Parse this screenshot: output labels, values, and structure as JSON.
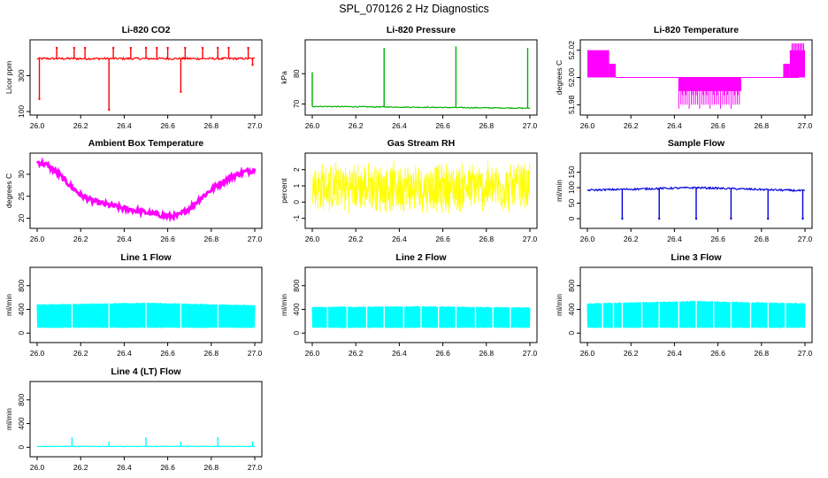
{
  "page_title": "SPL_070126  2 Hz Diagnostics",
  "colors": {
    "red": "#ff0000",
    "green": "#00b000",
    "magenta": "#ff00ff",
    "yellow": "#ffff00",
    "blue": "#0000dd",
    "cyan": "#00ffff",
    "axis": "#000000"
  },
  "chart_data": [
    {
      "id": "co2",
      "type": "line",
      "title": "Li-820 CO2",
      "ylabel": "Licor ppm",
      "color": "red",
      "xlim": [
        26.0,
        27.0
      ],
      "ylim": [
        100,
        480
      ],
      "x_ticks": [
        "26.0",
        "26.2",
        "26.4",
        "26.6",
        "26.8",
        "27.0"
      ],
      "y_ticks": [
        {
          "v": 100,
          "label": "100"
        },
        {
          "v": 300,
          "label": "300"
        }
      ],
      "baseline": 395,
      "noise": 6,
      "spikes": [
        [
          26.01,
          170
        ],
        [
          26.09,
          455
        ],
        [
          26.17,
          455
        ],
        [
          26.22,
          455
        ],
        [
          26.33,
          110
        ],
        [
          26.35,
          455
        ],
        [
          26.43,
          455
        ],
        [
          26.5,
          455
        ],
        [
          26.55,
          455
        ],
        [
          26.6,
          455
        ],
        [
          26.66,
          210
        ],
        [
          26.68,
          455
        ],
        [
          26.76,
          455
        ],
        [
          26.83,
          455
        ],
        [
          26.88,
          455
        ],
        [
          26.97,
          455
        ],
        [
          26.99,
          360
        ]
      ]
    },
    {
      "id": "pressure",
      "type": "line",
      "title": "Li-820 Pressure",
      "ylabel": "kPa",
      "color": "green",
      "xlim": [
        26.0,
        27.0
      ],
      "ylim": [
        67.5,
        90
      ],
      "x_ticks": [
        "26.0",
        "26.2",
        "26.4",
        "26.6",
        "26.8",
        "27.0"
      ],
      "y_ticks": [
        {
          "v": 70,
          "label": "70"
        },
        {
          "v": 80,
          "label": "80"
        }
      ],
      "baseline_start": 69.2,
      "baseline_end": 68.6,
      "noise": 0.15,
      "spikes": [
        [
          26.0,
          80.5
        ],
        [
          26.33,
          88.5
        ],
        [
          26.66,
          89
        ],
        [
          26.99,
          88.5
        ]
      ]
    },
    {
      "id": "temperature",
      "type": "step",
      "title": "Li-820 Temperature",
      "ylabel": "degrees C",
      "color": "magenta",
      "xlim": [
        26.0,
        27.0
      ],
      "ylim": [
        51.975,
        52.025
      ],
      "x_ticks": [
        "26.0",
        "26.2",
        "26.4",
        "26.6",
        "26.8",
        "27.0"
      ],
      "y_ticks": [
        {
          "v": 51.98,
          "label": "51.98"
        },
        {
          "v": 52.0,
          "label": "52.00"
        },
        {
          "v": 52.02,
          "label": "52.02"
        }
      ],
      "levels": [
        52.0,
        51.99,
        51.98,
        52.01,
        52.02
      ]
    },
    {
      "id": "ambient",
      "type": "line",
      "title": "Ambient Box Temperature",
      "ylabel": "degrees C",
      "color": "magenta",
      "xlim": [
        26.0,
        27.0
      ],
      "ylim": [
        18.5,
        34
      ],
      "x_ticks": [
        "26.0",
        "26.2",
        "26.4",
        "26.6",
        "26.8",
        "27.0"
      ],
      "y_ticks": [
        {
          "v": 20,
          "label": "20"
        },
        {
          "v": 25,
          "label": "25"
        },
        {
          "v": 30,
          "label": "30"
        }
      ],
      "points": [
        [
          26.0,
          32.8
        ],
        [
          26.05,
          32
        ],
        [
          26.1,
          30
        ],
        [
          26.15,
          27.5
        ],
        [
          26.2,
          25.3
        ],
        [
          26.25,
          24
        ],
        [
          26.3,
          23.3
        ],
        [
          26.35,
          22.8
        ],
        [
          26.4,
          22.2
        ],
        [
          26.45,
          21.8
        ],
        [
          26.5,
          21.3
        ],
        [
          26.55,
          20.9
        ],
        [
          26.6,
          20.4
        ],
        [
          26.65,
          20.6
        ],
        [
          26.7,
          22.3
        ],
        [
          26.75,
          24.5
        ],
        [
          26.8,
          26.5
        ],
        [
          26.85,
          28.2
        ],
        [
          26.9,
          29.6
        ],
        [
          26.95,
          30.5
        ],
        [
          27.0,
          31
        ]
      ],
      "noise": 0.6
    },
    {
      "id": "rh",
      "type": "noise",
      "title": "Gas Stream RH",
      "ylabel": "percent",
      "color": "yellow",
      "xlim": [
        26.0,
        27.0
      ],
      "ylim": [
        -1.4,
        2.8
      ],
      "x_ticks": [
        "26.0",
        "26.2",
        "26.4",
        "26.6",
        "26.8",
        "27.0"
      ],
      "y_ticks": [
        {
          "v": -1,
          "label": "-1"
        },
        {
          "v": 0,
          "label": "0"
        },
        {
          "v": 1,
          "label": "1"
        },
        {
          "v": 2,
          "label": "2"
        }
      ],
      "center": 0.9,
      "amplitude": 1.7
    },
    {
      "id": "sample",
      "type": "line",
      "title": "Sample Flow",
      "ylabel": "ml/min",
      "color": "blue",
      "xlim": [
        26.0,
        27.0
      ],
      "ylim": [
        -20,
        200
      ],
      "x_ticks": [
        "26.0",
        "26.2",
        "26.4",
        "26.6",
        "26.8",
        "27.0"
      ],
      "y_ticks": [
        {
          "v": 0,
          "label": "0"
        },
        {
          "v": 50,
          "label": "50"
        },
        {
          "v": 100,
          "label": "100"
        },
        {
          "v": 150,
          "label": "150"
        }
      ],
      "baseline_start": 92,
      "baseline_mid": 100,
      "baseline_end": 90,
      "noise": 3,
      "spikes": [
        [
          26.16,
          0
        ],
        [
          26.33,
          0
        ],
        [
          26.5,
          0
        ],
        [
          26.66,
          0
        ],
        [
          26.83,
          0
        ],
        [
          26.99,
          0
        ]
      ]
    },
    {
      "id": "line1",
      "type": "band",
      "title": "Line 1 Flow",
      "ylabel": "ml/min",
      "color": "cyan",
      "xlim": [
        26.0,
        27.0
      ],
      "ylim": [
        -100,
        1050
      ],
      "x_ticks": [
        "26.0",
        "26.2",
        "26.4",
        "26.6",
        "26.8",
        "27.0"
      ],
      "y_ticks": [
        {
          "v": 0,
          "label": "0"
        },
        {
          "v": 400,
          "label": "400"
        },
        {
          "v": 800,
          "label": "800"
        }
      ],
      "low": 90,
      "high_start": 480,
      "high_mid": 510,
      "high_end": 470,
      "gaps": [
        26.16,
        26.33,
        26.5,
        26.66,
        26.83
      ]
    },
    {
      "id": "line2",
      "type": "band",
      "title": "Line 2 Flow",
      "ylabel": "ml/min",
      "color": "cyan",
      "xlim": [
        26.0,
        27.0
      ],
      "ylim": [
        -100,
        1050
      ],
      "x_ticks": [
        "26.0",
        "26.2",
        "26.4",
        "26.6",
        "26.8",
        "27.0"
      ],
      "y_ticks": [
        {
          "v": 0,
          "label": "0"
        },
        {
          "v": 400,
          "label": "400"
        },
        {
          "v": 800,
          "label": "800"
        }
      ],
      "low": 90,
      "high_start": 440,
      "high_mid": 450,
      "high_end": 430,
      "gaps": [
        26.07,
        26.16,
        26.25,
        26.33,
        26.42,
        26.5,
        26.58,
        26.66,
        26.75,
        26.83,
        26.91
      ]
    },
    {
      "id": "line3",
      "type": "band",
      "title": "Line 3 Flow",
      "ylabel": "ml/min",
      "color": "cyan",
      "xlim": [
        26.0,
        27.0
      ],
      "ylim": [
        -100,
        1050
      ],
      "x_ticks": [
        "26.0",
        "26.2",
        "26.4",
        "26.6",
        "26.8",
        "27.0"
      ],
      "y_ticks": [
        {
          "v": 0,
          "label": "0"
        },
        {
          "v": 400,
          "label": "400"
        },
        {
          "v": 800,
          "label": "800"
        }
      ],
      "low": 90,
      "high_start": 500,
      "high_mid": 540,
      "high_end": 500,
      "gaps": [
        26.07,
        26.12,
        26.16,
        26.25,
        26.33,
        26.42,
        26.5,
        26.58,
        26.66,
        26.75,
        26.83,
        26.91
      ]
    },
    {
      "id": "line4",
      "type": "line",
      "title": "Line 4 (LT) Flow",
      "ylabel": "ml/min",
      "color": "cyan",
      "xlim": [
        26.0,
        27.0
      ],
      "ylim": [
        -100,
        1050
      ],
      "x_ticks": [
        "26.0",
        "26.2",
        "26.4",
        "26.6",
        "26.8",
        "27.0"
      ],
      "y_ticks": [
        {
          "v": 0,
          "label": "0"
        },
        {
          "v": 400,
          "label": "400"
        },
        {
          "v": 800,
          "label": "800"
        }
      ],
      "baseline_start": 15,
      "baseline_mid": 15,
      "baseline_end": 15,
      "noise": 4,
      "spikes": [
        [
          26.16,
          170
        ],
        [
          26.33,
          100
        ],
        [
          26.5,
          170
        ],
        [
          26.66,
          100
        ],
        [
          26.83,
          170
        ],
        [
          26.99,
          100
        ]
      ]
    }
  ]
}
